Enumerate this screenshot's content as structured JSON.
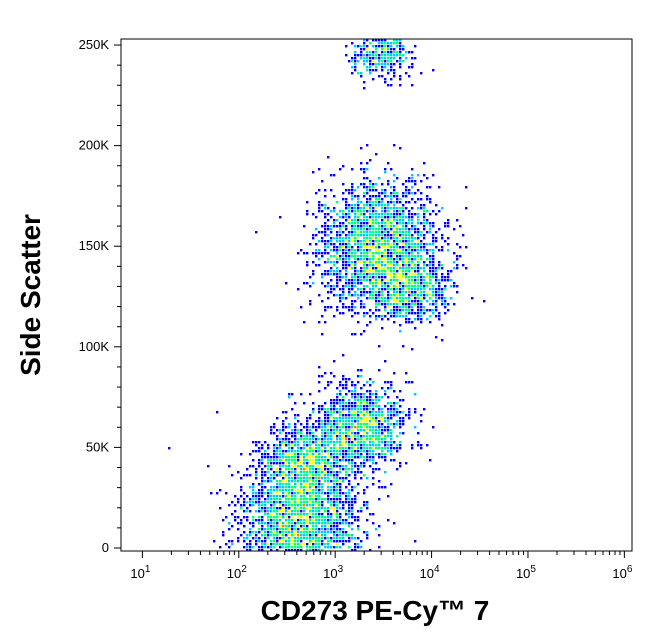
{
  "chart_data": {
    "type": "scatter",
    "title": "",
    "xlabel": "CD273 PE-Cy™ 7",
    "ylabel": "Side Scatter",
    "x_scale": "log",
    "xlim": [
      6,
      1200000
    ],
    "ylim": [
      -1500,
      253000
    ],
    "x_ticks": [
      {
        "value": 10,
        "base": "10",
        "exp": "1"
      },
      {
        "value": 100,
        "base": "10",
        "exp": "2"
      },
      {
        "value": 1000,
        "base": "10",
        "exp": "3"
      },
      {
        "value": 10000,
        "base": "10",
        "exp": "4"
      },
      {
        "value": 100000,
        "base": "10",
        "exp": "5"
      },
      {
        "value": 1000000,
        "base": "10",
        "exp": "6"
      }
    ],
    "y_ticks": [
      {
        "value": 0,
        "label": "0"
      },
      {
        "value": 50000,
        "label": "50K"
      },
      {
        "value": 100000,
        "label": "100K"
      },
      {
        "value": 150000,
        "label": "150K"
      },
      {
        "value": 200000,
        "label": "200K"
      },
      {
        "value": 250000,
        "label": "250K"
      }
    ],
    "color_scale": [
      "#0000ff",
      "#00c8ff",
      "#00ff80",
      "#ffff00",
      "#ff8000",
      "#ff0000"
    ],
    "populations": [
      {
        "x": 420,
        "y": 9000,
        "count": 2600
      },
      {
        "x": 500,
        "y": 42000,
        "count": 1100
      },
      {
        "x": 2800,
        "y": 150000,
        "count": 2400
      },
      {
        "x": 1800,
        "y": 60000,
        "count": 1300
      },
      {
        "x": 6000,
        "y": 130000,
        "count": 700
      },
      {
        "x": 3000,
        "y": 245000,
        "count": 350
      }
    ]
  }
}
